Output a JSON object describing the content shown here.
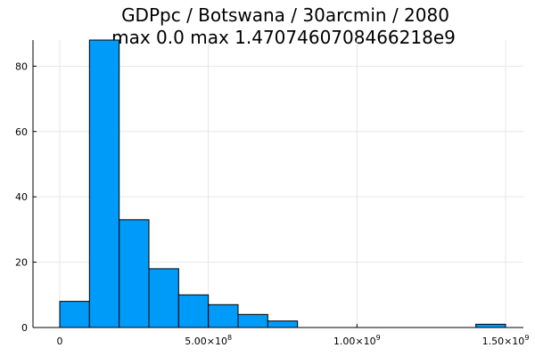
{
  "chart_data": {
    "type": "bar",
    "title_lines": [
      "GDPpc / Botswana / 30arcmin / 2080",
      "max 0.0  max 1.4707460708466218e9"
    ],
    "xlabel": "",
    "ylabel": "",
    "bin_edges": [
      0,
      100000000,
      200000000,
      300000000,
      400000000,
      500000000,
      600000000,
      700000000,
      800000000,
      900000000,
      1000000000,
      1100000000,
      1200000000,
      1300000000,
      1400000000,
      1500000000
    ],
    "values": [
      8,
      88,
      33,
      18,
      10,
      7,
      4,
      2,
      0,
      0,
      0,
      0,
      0,
      0,
      1
    ],
    "xlim": [
      -90000000,
      1560000000
    ],
    "ylim": [
      0,
      88
    ],
    "x_ticks": [
      {
        "value": 0,
        "mantissa": "0",
        "exponent": ""
      },
      {
        "value": 500000000,
        "mantissa": "5.00×10",
        "exponent": "8"
      },
      {
        "value": 1000000000,
        "mantissa": "1.00×10",
        "exponent": "9"
      },
      {
        "value": 1500000000,
        "mantissa": "1.50×10",
        "exponent": "9"
      }
    ],
    "y_ticks": [
      0,
      20,
      40,
      60,
      80
    ],
    "grid": true,
    "legend": "none",
    "bar_color": "#009af9",
    "bar_edge_color": "#000000"
  }
}
